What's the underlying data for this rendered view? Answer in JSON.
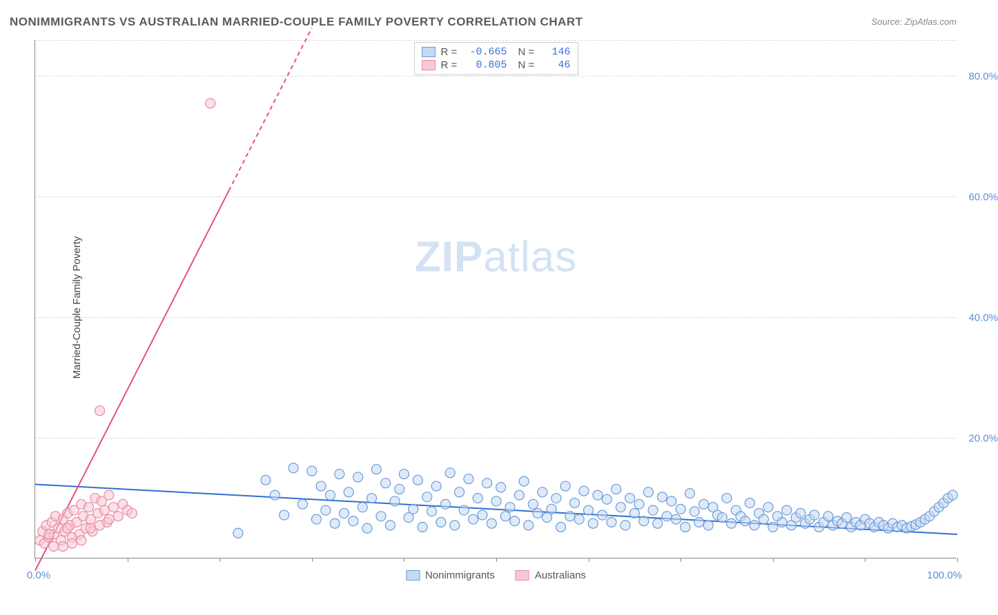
{
  "title": "NONIMMIGRANTS VS AUSTRALIAN MARRIED-COUPLE FAMILY POVERTY CORRELATION CHART",
  "source": "Source: ZipAtlas.com",
  "watermark_bold": "ZIP",
  "watermark_rest": "atlas",
  "y_axis_label": "Married-Couple Family Poverty",
  "chart": {
    "type": "scatter",
    "xlim": [
      0,
      100
    ],
    "ylim": [
      0,
      86
    ],
    "x_ticks": [
      0,
      10,
      20,
      30,
      40,
      50,
      60,
      70,
      80,
      90,
      100
    ],
    "x_tick_labels_shown": {
      "0": "0.0%",
      "100": "100.0%"
    },
    "y_gridlines": [
      20,
      40,
      60,
      80
    ],
    "y_tick_labels": {
      "20": "20.0%",
      "40": "40.0%",
      "60": "60.0%",
      "80": "80.0%"
    },
    "background_color": "#ffffff",
    "grid_color": "#d8d8d8",
    "axis_color": "#888888",
    "tick_label_color": "#5b8fd6",
    "marker_radius": 7,
    "marker_stroke_width": 1.2,
    "series": [
      {
        "name": "Nonimmigrants",
        "fill": "#c4d9f2",
        "stroke": "#6a9bd8",
        "fill_opacity": 0.55,
        "r_value": "-0.665",
        "n_value": "146",
        "trendline": {
          "x1": 0,
          "y1": 12.3,
          "x2": 100,
          "y2": 4.0,
          "color": "#2f6fd0",
          "width": 2
        },
        "points": [
          [
            22,
            4.2
          ],
          [
            25,
            13
          ],
          [
            26,
            10.5
          ],
          [
            27,
            7.2
          ],
          [
            28,
            15
          ],
          [
            29,
            9
          ],
          [
            30,
            14.5
          ],
          [
            30.5,
            6.5
          ],
          [
            31,
            12
          ],
          [
            31.5,
            8
          ],
          [
            32,
            10.5
          ],
          [
            32.5,
            5.8
          ],
          [
            33,
            14
          ],
          [
            33.5,
            7.5
          ],
          [
            34,
            11
          ],
          [
            34.5,
            6.2
          ],
          [
            35,
            13.5
          ],
          [
            35.5,
            8.5
          ],
          [
            36,
            5
          ],
          [
            36.5,
            10
          ],
          [
            37,
            14.8
          ],
          [
            37.5,
            7
          ],
          [
            38,
            12.5
          ],
          [
            38.5,
            5.5
          ],
          [
            39,
            9.5
          ],
          [
            39.5,
            11.5
          ],
          [
            40,
            14
          ],
          [
            40.5,
            6.8
          ],
          [
            41,
            8.2
          ],
          [
            41.5,
            13
          ],
          [
            42,
            5.2
          ],
          [
            42.5,
            10.2
          ],
          [
            43,
            7.8
          ],
          [
            43.5,
            12
          ],
          [
            44,
            6
          ],
          [
            44.5,
            9
          ],
          [
            45,
            14.2
          ],
          [
            45.5,
            5.5
          ],
          [
            46,
            11
          ],
          [
            46.5,
            8
          ],
          [
            47,
            13.2
          ],
          [
            47.5,
            6.5
          ],
          [
            48,
            10
          ],
          [
            48.5,
            7.2
          ],
          [
            49,
            12.5
          ],
          [
            49.5,
            5.8
          ],
          [
            50,
            9.5
          ],
          [
            50.5,
            11.8
          ],
          [
            51,
            7
          ],
          [
            51.5,
            8.5
          ],
          [
            52,
            6.2
          ],
          [
            52.5,
            10.5
          ],
          [
            53,
            12.8
          ],
          [
            53.5,
            5.5
          ],
          [
            54,
            9
          ],
          [
            54.5,
            7.5
          ],
          [
            55,
            11
          ],
          [
            55.5,
            6.8
          ],
          [
            56,
            8.2
          ],
          [
            56.5,
            10
          ],
          [
            57,
            5.2
          ],
          [
            57.5,
            12
          ],
          [
            58,
            7
          ],
          [
            58.5,
            9.2
          ],
          [
            59,
            6.5
          ],
          [
            59.5,
            11.2
          ],
          [
            60,
            8
          ],
          [
            60.5,
            5.8
          ],
          [
            61,
            10.5
          ],
          [
            61.5,
            7.2
          ],
          [
            62,
            9.8
          ],
          [
            62.5,
            6
          ],
          [
            63,
            11.5
          ],
          [
            63.5,
            8.5
          ],
          [
            64,
            5.5
          ],
          [
            64.5,
            10
          ],
          [
            65,
            7.5
          ],
          [
            65.5,
            9
          ],
          [
            66,
            6.2
          ],
          [
            66.5,
            11
          ],
          [
            67,
            8
          ],
          [
            67.5,
            5.8
          ],
          [
            68,
            10.2
          ],
          [
            68.5,
            7
          ],
          [
            69,
            9.5
          ],
          [
            69.5,
            6.5
          ],
          [
            70,
            8.2
          ],
          [
            70.5,
            5.2
          ],
          [
            71,
            10.8
          ],
          [
            71.5,
            7.8
          ],
          [
            72,
            6
          ],
          [
            72.5,
            9
          ],
          [
            73,
            5.5
          ],
          [
            73.5,
            8.5
          ],
          [
            74,
            7.2
          ],
          [
            74.5,
            6.8
          ],
          [
            75,
            10
          ],
          [
            75.5,
            5.8
          ],
          [
            76,
            8
          ],
          [
            76.5,
            7
          ],
          [
            77,
            6.2
          ],
          [
            77.5,
            9.2
          ],
          [
            78,
            5.5
          ],
          [
            78.5,
            7.5
          ],
          [
            79,
            6.5
          ],
          [
            79.5,
            8.5
          ],
          [
            80,
            5.2
          ],
          [
            80.5,
            7
          ],
          [
            81,
            6
          ],
          [
            81.5,
            8
          ],
          [
            82,
            5.5
          ],
          [
            82.5,
            6.8
          ],
          [
            83,
            7.5
          ],
          [
            83.5,
            5.8
          ],
          [
            84,
            6.5
          ],
          [
            84.5,
            7.2
          ],
          [
            85,
            5.2
          ],
          [
            85.5,
            6
          ],
          [
            86,
            7
          ],
          [
            86.5,
            5.5
          ],
          [
            87,
            6.2
          ],
          [
            87.5,
            5.8
          ],
          [
            88,
            6.8
          ],
          [
            88.5,
            5.2
          ],
          [
            89,
            6
          ],
          [
            89.5,
            5.5
          ],
          [
            90,
            6.5
          ],
          [
            90.5,
            5.8
          ],
          [
            91,
            5.2
          ],
          [
            91.5,
            6
          ],
          [
            92,
            5.5
          ],
          [
            92.5,
            5
          ],
          [
            93,
            5.8
          ],
          [
            93.5,
            5.2
          ],
          [
            94,
            5.5
          ],
          [
            94.5,
            5
          ],
          [
            95,
            5.3
          ],
          [
            95.5,
            5.6
          ],
          [
            96,
            6
          ],
          [
            96.5,
            6.5
          ],
          [
            97,
            7
          ],
          [
            97.5,
            7.8
          ],
          [
            98,
            8.5
          ],
          [
            98.5,
            9.2
          ],
          [
            99,
            10
          ],
          [
            99.5,
            10.5
          ]
        ]
      },
      {
        "name": "Australians",
        "fill": "#f6c9d4",
        "stroke": "#e88aa5",
        "fill_opacity": 0.55,
        "r_value": "0.805",
        "n_value": "46",
        "trendline": {
          "x1": 0,
          "y1": -2,
          "x2": 21,
          "y2": 61,
          "dashed_extend_x2": 30,
          "dashed_extend_y2": 88,
          "color": "#e84f7a",
          "width": 2
        },
        "points": [
          [
            0.5,
            3
          ],
          [
            0.8,
            4.5
          ],
          [
            1,
            2.5
          ],
          [
            1.2,
            5.5
          ],
          [
            1.5,
            3.5
          ],
          [
            1.8,
            6
          ],
          [
            2,
            4
          ],
          [
            2.2,
            7
          ],
          [
            2.5,
            5
          ],
          [
            2.8,
            3
          ],
          [
            3,
            6.5
          ],
          [
            3.2,
            4.5
          ],
          [
            3.5,
            7.5
          ],
          [
            3.8,
            5.5
          ],
          [
            4,
            3.5
          ],
          [
            4.2,
            8
          ],
          [
            4.5,
            6
          ],
          [
            4.8,
            4
          ],
          [
            5,
            9
          ],
          [
            5.2,
            7
          ],
          [
            5.5,
            5
          ],
          [
            5.8,
            8.5
          ],
          [
            6,
            6.5
          ],
          [
            6.2,
            4.5
          ],
          [
            6.5,
            10
          ],
          [
            6.8,
            7.5
          ],
          [
            7,
            5.5
          ],
          [
            7.2,
            9.5
          ],
          [
            7.5,
            8
          ],
          [
            7.8,
            6
          ],
          [
            8,
            10.5
          ],
          [
            8.5,
            8.5
          ],
          [
            9,
            7
          ],
          [
            9.5,
            9
          ],
          [
            10,
            8
          ],
          [
            10.5,
            7.5
          ],
          [
            7,
            24.5
          ],
          [
            3,
            2
          ],
          [
            4,
            2.5
          ],
          [
            5,
            3
          ],
          [
            2,
            2
          ],
          [
            1.5,
            4
          ],
          [
            6,
            5
          ],
          [
            8,
            6.5
          ],
          [
            19,
            75.5
          ],
          [
            3.5,
            5
          ]
        ]
      }
    ],
    "legend_top": {
      "r_label": "R =",
      "n_label": "N ="
    },
    "legend_bottom": [
      {
        "label": "Nonimmigrants",
        "fill": "#c4d9f2",
        "stroke": "#6a9bd8"
      },
      {
        "label": "Australians",
        "fill": "#f6c9d4",
        "stroke": "#e88aa5"
      }
    ]
  }
}
